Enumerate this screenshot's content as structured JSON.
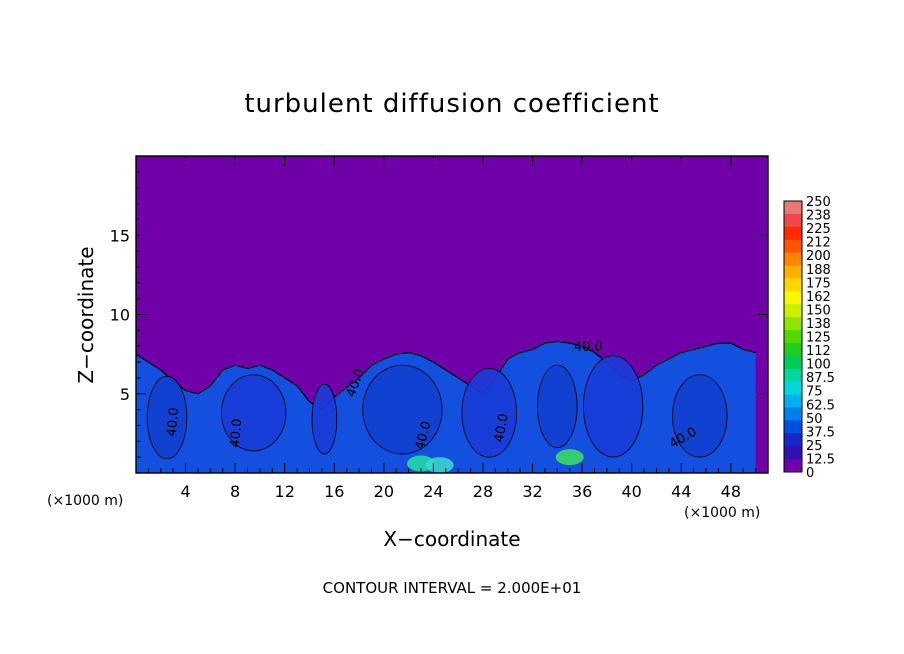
{
  "chart_data": {
    "type": "heatmap",
    "title": "turbulent diffusion coefficient",
    "xlabel": "X−coordinate",
    "ylabel": "Z−coordinate",
    "x_unit_left": "(×1000 m)",
    "x_unit_right": "(×1000 m)",
    "xlim": [
      0,
      51
    ],
    "ylim": [
      0,
      20
    ],
    "xticks": [
      4,
      8,
      12,
      16,
      20,
      24,
      28,
      32,
      36,
      40,
      44,
      48
    ],
    "yticks": [
      5,
      10,
      15
    ],
    "footer": "CONTOUR INTERVAL = 2.000E+01",
    "contour_labels": [
      {
        "text": "40.0",
        "x": 3.3,
        "z": 3.2,
        "angle": -85
      },
      {
        "text": "40.0",
        "x": 8.4,
        "z": 2.5,
        "angle": -85
      },
      {
        "text": "40.0",
        "x": 18.0,
        "z": 5.6,
        "angle": -70
      },
      {
        "text": "40.0",
        "x": 23.5,
        "z": 2.3,
        "angle": -75
      },
      {
        "text": "40.0",
        "x": 29.8,
        "z": 2.8,
        "angle": -80
      },
      {
        "text": "40.0",
        "x": 36.5,
        "z": 7.7,
        "angle": 0
      },
      {
        "text": "40.0",
        "x": 44.3,
        "z": 2.0,
        "angle": -30
      }
    ],
    "colorbar": {
      "labels": [
        "250",
        "238",
        "225",
        "212",
        "200",
        "188",
        "175",
        "162",
        "150",
        "138",
        "125",
        "112",
        "100",
        "87.5",
        "75",
        "62.5",
        "50",
        "37.5",
        "25",
        "12.5",
        "0"
      ],
      "colors": [
        "#e87878",
        "#f04848",
        "#ff2a00",
        "#ff5400",
        "#ff8400",
        "#ffb000",
        "#ffd800",
        "#f8f800",
        "#c8f000",
        "#90e400",
        "#50d800",
        "#20cc20",
        "#00cc58",
        "#00d8a0",
        "#00d8d8",
        "#00b0f0",
        "#0080f0",
        "#0050e0",
        "#1828c8",
        "#3010b0",
        "#7000a8"
      ]
    },
    "colors": {
      "background_field": "#7000a8",
      "turbulent_layer": "#1450e0",
      "contour_line": "#000000"
    },
    "boundary_layer_top_z": [
      7.5,
      7.0,
      6.5,
      5.8,
      5.2,
      5.0,
      5.5,
      6.5,
      6.8,
      6.6,
      6.8,
      6.5,
      6.0,
      5.5,
      4.5,
      4.0,
      4.8,
      5.4,
      6.0,
      6.8,
      7.2,
      7.5,
      7.6,
      7.4,
      7.0,
      6.5,
      6.0,
      5.5,
      5.0,
      6.0,
      7.2,
      7.6,
      7.8,
      8.2,
      8.3,
      8.2,
      8.0,
      7.6,
      7.0,
      6.2,
      5.8,
      6.2,
      6.8,
      7.2,
      7.6,
      7.8,
      8.0,
      8.2,
      8.2,
      7.8,
      7.6
    ]
  }
}
